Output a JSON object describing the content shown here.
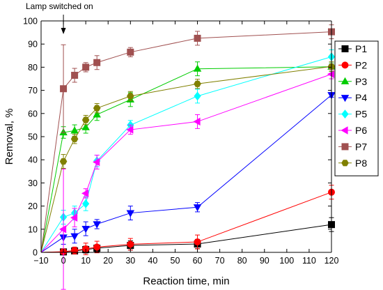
{
  "chart_data": {
    "type": "line",
    "title": "",
    "xlabel": "Reaction time, min",
    "ylabel": "Removal, %",
    "xlim": [
      -10,
      120
    ],
    "ylim": [
      0,
      100
    ],
    "xticks": [
      -10,
      0,
      10,
      20,
      30,
      40,
      50,
      60,
      70,
      80,
      90,
      100,
      110,
      120
    ],
    "yticks": [
      0,
      10,
      20,
      30,
      40,
      50,
      60,
      70,
      80,
      90,
      100
    ],
    "grid": false,
    "legend_position": "right",
    "annotation": {
      "text": "Lamp switched on",
      "x": 0
    },
    "x": [
      -10,
      0,
      5,
      10,
      15,
      30,
      60,
      120
    ],
    "series": [
      {
        "name": "P1",
        "color": "#000000",
        "marker": "square",
        "values": [
          0,
          0.2,
          0.6,
          1.2,
          1.8,
          3.0,
          3.6,
          12.0
        ],
        "errors": [
          0,
          1.0,
          1.0,
          1.5,
          1.5,
          2.0,
          2.0,
          3.0
        ]
      },
      {
        "name": "P2",
        "color": "#ff0000",
        "marker": "circle",
        "values": [
          0,
          0.3,
          0.8,
          1.5,
          2.3,
          3.5,
          4.5,
          26.0
        ],
        "errors": [
          0,
          1.0,
          1.5,
          2.5,
          2.5,
          2.5,
          3.0,
          3.0
        ]
      },
      {
        "name": "P3",
        "color": "#00cc00",
        "marker": "triangle-up",
        "values": [
          0,
          51.8,
          52.6,
          54.0,
          59.5,
          66.0,
          79.3,
          80.2
        ],
        "errors": [
          0,
          2.5,
          2.5,
          2.5,
          2.5,
          3.0,
          3.0,
          2.0
        ]
      },
      {
        "name": "P4",
        "color": "#0000ff",
        "marker": "triangle-down",
        "values": [
          0,
          6.5,
          7.0,
          10.2,
          12.2,
          17.0,
          19.5,
          68.0
        ],
        "errors": [
          0,
          3.0,
          3.0,
          3.0,
          2.0,
          3.0,
          2.0,
          1.0
        ]
      },
      {
        "name": "P5",
        "color": "#00ffff",
        "marker": "diamond",
        "values": [
          0,
          15.2,
          17.0,
          21.0,
          39.5,
          55.0,
          67.5,
          84.5
        ],
        "errors": [
          0,
          3.0,
          3.0,
          3.0,
          2.5,
          2.0,
          3.0,
          3.0
        ]
      },
      {
        "name": "P6",
        "color": "#ff00ff",
        "marker": "triangle-left",
        "values": [
          0,
          10.0,
          15.0,
          25.5,
          39.0,
          53.0,
          56.5,
          77.0
        ],
        "errors": [
          0,
          26.0,
          4.0,
          2.0,
          3.0,
          2.0,
          3.0,
          2.0
        ]
      },
      {
        "name": "P7",
        "color": "#a05050",
        "marker": "square",
        "values": [
          0,
          70.7,
          76.5,
          80.0,
          82.0,
          86.5,
          92.5,
          95.3
        ],
        "errors": [
          0,
          19.0,
          3.0,
          2.0,
          3.0,
          2.0,
          3.0,
          3.0
        ]
      },
      {
        "name": "P8",
        "color": "#808000",
        "marker": "hexagon",
        "values": [
          0,
          39.3,
          49.0,
          57.2,
          62.3,
          67.5,
          72.8,
          80.3
        ],
        "errors": [
          0,
          3.0,
          2.0,
          2.0,
          2.0,
          2.0,
          2.0,
          2.0
        ]
      }
    ]
  }
}
